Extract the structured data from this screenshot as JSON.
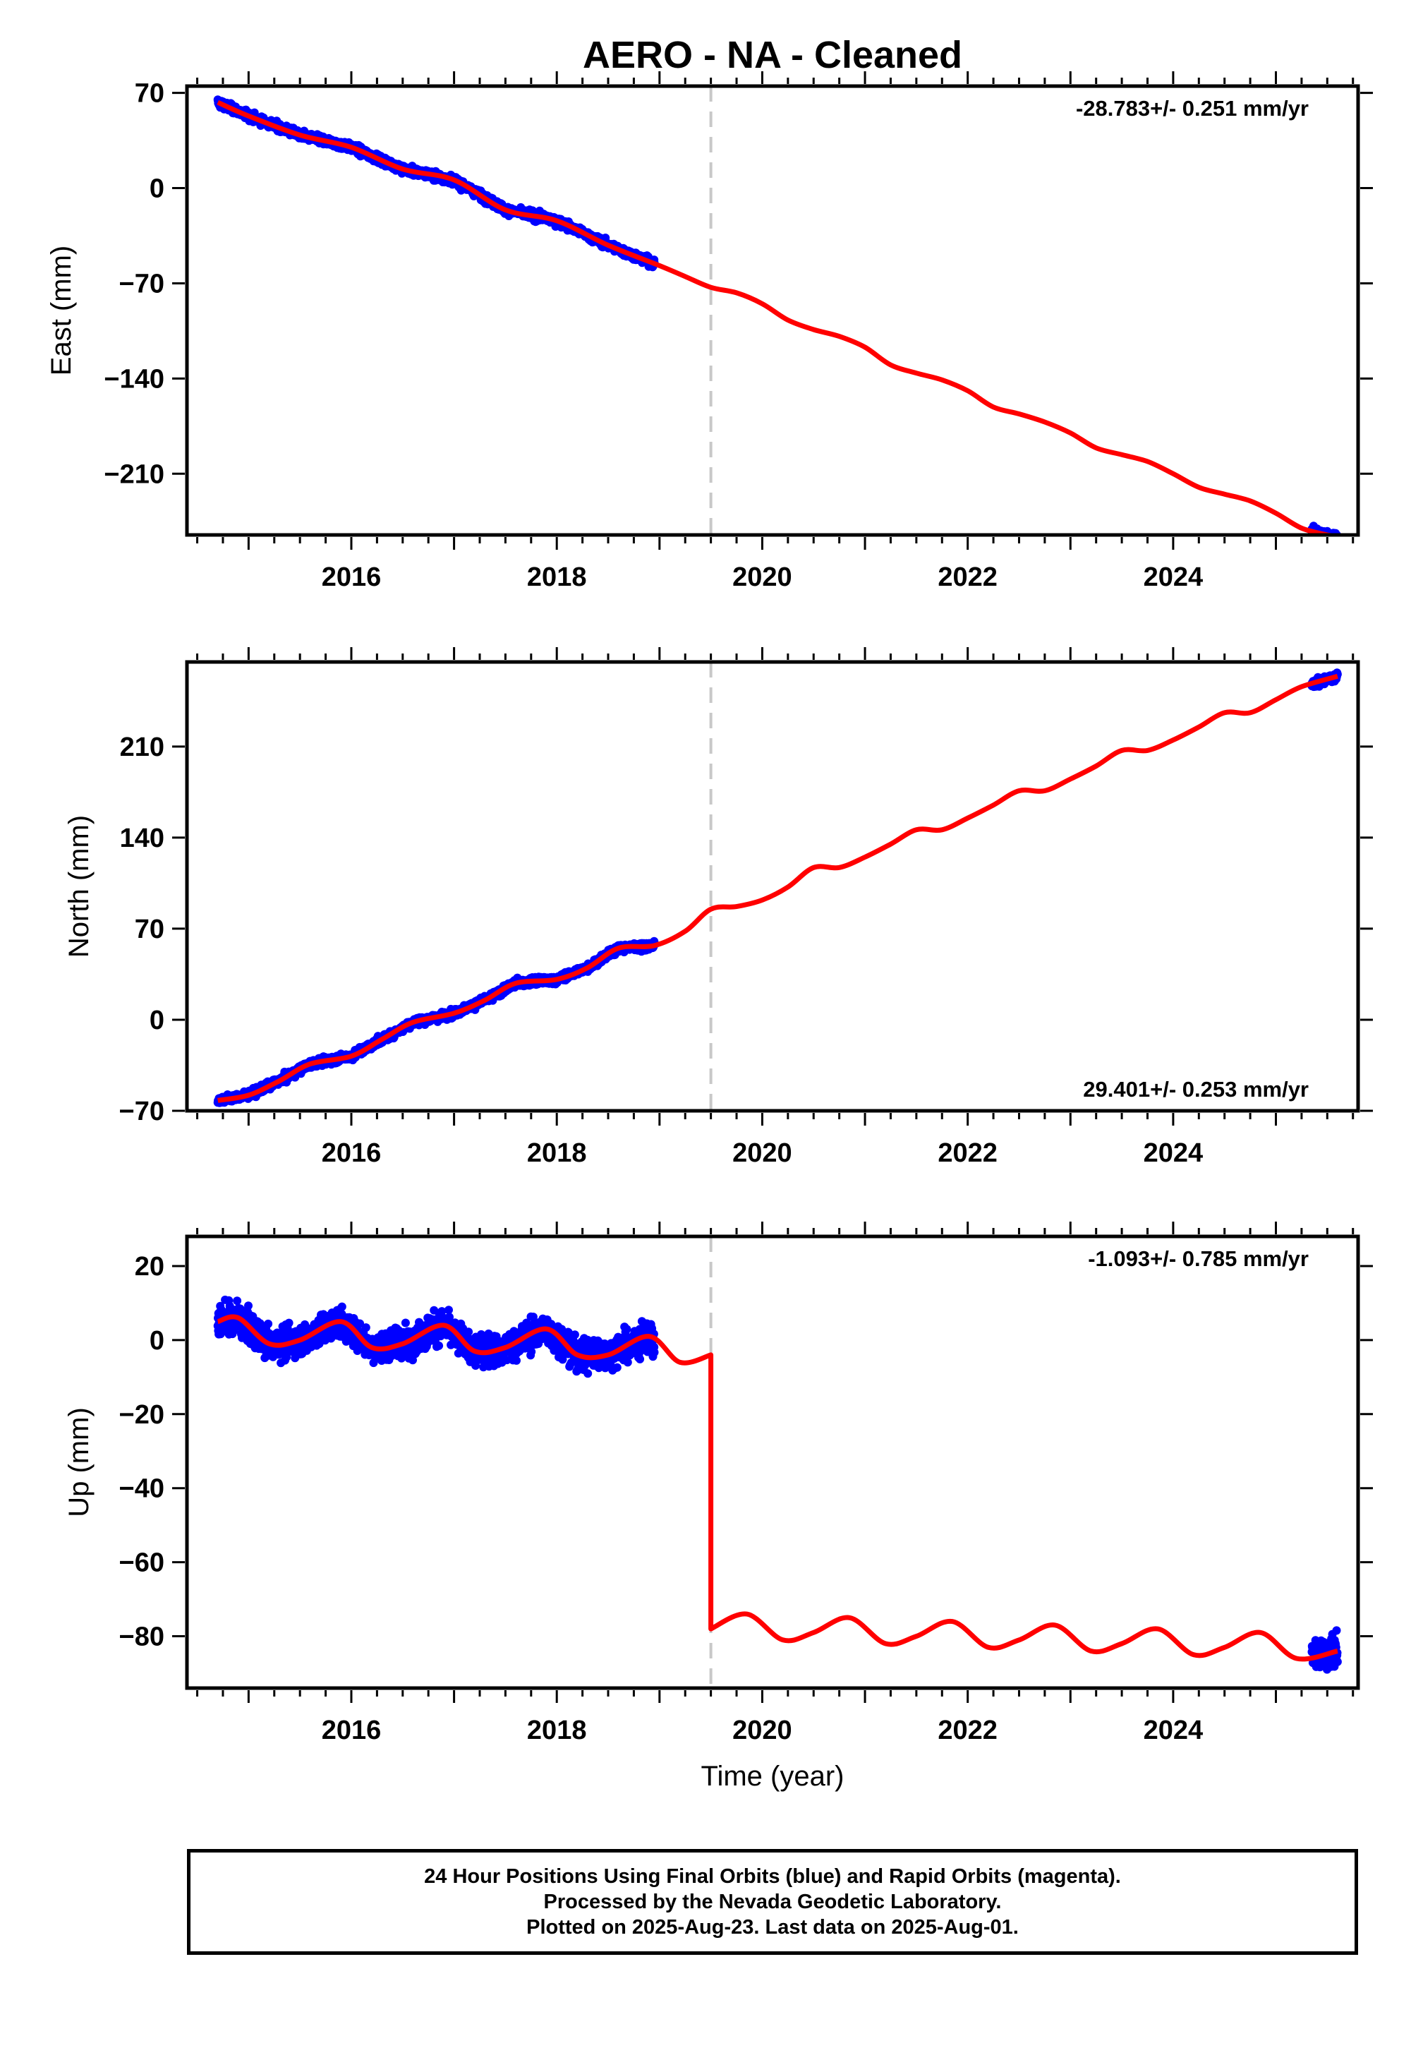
{
  "title": "AERO  - NA - Cleaned",
  "colors": {
    "final_orbits": "#0000ff",
    "model": "#ff0000",
    "event_line": "#c8c8c8",
    "frame": "#000000"
  },
  "chart_data": [
    {
      "type": "scatter",
      "component": "east",
      "ylabel": "East (mm)",
      "xlabel": "",
      "xlim": [
        2014.4,
        2025.8
      ],
      "ylim": [
        -255,
        75
      ],
      "x_ticks": [
        2016,
        2018,
        2020,
        2022,
        2024
      ],
      "y_ticks": [
        70,
        0,
        -70,
        -140,
        -210
      ],
      "rate": "-28.783+/- 0.251 mm/yr",
      "event_line_x": 2019.5,
      "model": {
        "x": [
          2014.7,
          2015.0,
          2015.5,
          2016.0,
          2016.5,
          2017.0,
          2017.5,
          2018.0,
          2018.5,
          2019.0,
          2019.25,
          2019.5,
          2019.75,
          2020.0,
          2020.25,
          2020.5,
          2020.75,
          2021.0,
          2021.25,
          2021.5,
          2021.75,
          2022.0,
          2022.25,
          2022.5,
          2022.75,
          2023.0,
          2023.25,
          2023.5,
          2023.75,
          2024.0,
          2024.25,
          2024.5,
          2024.75,
          2025.0,
          2025.25,
          2025.5,
          2025.6
        ],
        "y": [
          63,
          53,
          39,
          30,
          14,
          6,
          -16,
          -24,
          -42,
          -57,
          -65,
          -73,
          -77,
          -85,
          -97,
          -104,
          -109,
          -117,
          -130,
          -136,
          -141,
          -149,
          -161,
          -166,
          -172,
          -180,
          -191,
          -196,
          -201,
          -210,
          -220,
          -225,
          -230,
          -239,
          -250,
          -255,
          -256
        ]
      },
      "observed": {
        "segments": [
          {
            "x_start": 2014.7,
            "x_end": 2018.95
          },
          {
            "x_start": 2025.35,
            "x_end": 2025.6
          }
        ],
        "scatter_mm": 2.5
      }
    },
    {
      "type": "scatter",
      "component": "north",
      "ylabel": "North (mm)",
      "xlabel": "",
      "xlim": [
        2014.4,
        2025.8
      ],
      "ylim": [
        -70,
        275
      ],
      "x_ticks": [
        2016,
        2018,
        2020,
        2022,
        2024
      ],
      "y_ticks": [
        210,
        140,
        70,
        0,
        -70
      ],
      "rate": "29.401+/- 0.253 mm/yr",
      "event_line_x": 2019.5,
      "model": {
        "x": [
          2014.7,
          2015.0,
          2015.3,
          2015.6,
          2016.0,
          2016.3,
          2016.6,
          2017.0,
          2017.3,
          2017.6,
          2018.0,
          2018.3,
          2018.6,
          2018.95,
          2019.25,
          2019.5,
          2019.75,
          2020.0,
          2020.25,
          2020.5,
          2020.75,
          2021.0,
          2021.25,
          2021.5,
          2021.75,
          2022.0,
          2022.25,
          2022.5,
          2022.75,
          2023.0,
          2023.25,
          2023.5,
          2023.75,
          2024.0,
          2024.25,
          2024.5,
          2024.75,
          2025.0,
          2025.25,
          2025.6
        ],
        "y": [
          -62,
          -58,
          -47,
          -34,
          -28,
          -15,
          -2,
          5,
          15,
          28,
          31,
          40,
          55,
          57,
          68,
          85,
          87,
          92,
          102,
          117,
          117,
          125,
          135,
          146,
          146,
          155,
          165,
          176,
          176,
          185,
          195,
          207,
          207,
          215,
          225,
          236,
          236,
          246,
          256,
          264
        ]
      },
      "observed": {
        "segments": [
          {
            "x_start": 2014.7,
            "x_end": 2018.95
          },
          {
            "x_start": 2025.35,
            "x_end": 2025.6
          }
        ],
        "scatter_mm": 2.5
      }
    },
    {
      "type": "scatter",
      "component": "up",
      "ylabel": "Up (mm)",
      "xlabel": "Time (year)",
      "xlim": [
        2014.4,
        2025.8
      ],
      "ylim": [
        -94,
        28
      ],
      "x_ticks": [
        2016,
        2018,
        2020,
        2022,
        2024
      ],
      "y_ticks": [
        20,
        0,
        -20,
        -40,
        -60,
        -80
      ],
      "rate": "-1.093+/- 0.785 mm/yr",
      "event_line_x": 2019.5,
      "model": {
        "x": [
          2014.7,
          2014.9,
          2015.2,
          2015.5,
          2015.9,
          2016.2,
          2016.5,
          2016.9,
          2017.2,
          2017.5,
          2017.9,
          2018.2,
          2018.5,
          2018.9,
          2019.2,
          2019.5,
          2019.5,
          2019.85,
          2020.2,
          2020.5,
          2020.85,
          2021.2,
          2021.5,
          2021.85,
          2022.2,
          2022.5,
          2022.85,
          2023.2,
          2023.5,
          2023.85,
          2024.2,
          2024.5,
          2024.85,
          2025.2,
          2025.6
        ],
        "y": [
          5,
          6,
          -1,
          0,
          5,
          -2,
          -1,
          4,
          -3,
          -2,
          3,
          -4,
          -4,
          1,
          -6,
          -4,
          -78,
          -74,
          -81,
          -79,
          -75,
          -82,
          -80,
          -76,
          -83,
          -81,
          -77,
          -84,
          -82,
          -78,
          -85,
          -83,
          -79,
          -86,
          -84
        ]
      },
      "observed": {
        "segments": [
          {
            "x_start": 2014.7,
            "x_end": 2018.95
          },
          {
            "x_start": 2025.35,
            "x_end": 2025.6
          }
        ],
        "scatter_mm": 3.5
      }
    }
  ],
  "footer": {
    "line1": "24 Hour Positions Using Final Orbits (blue) and Rapid Orbits (magenta).",
    "line2": "Processed by the Nevada Geodetic Laboratory.",
    "line3": "Plotted on 2025-Aug-23. Last data on 2025-Aug-01."
  }
}
